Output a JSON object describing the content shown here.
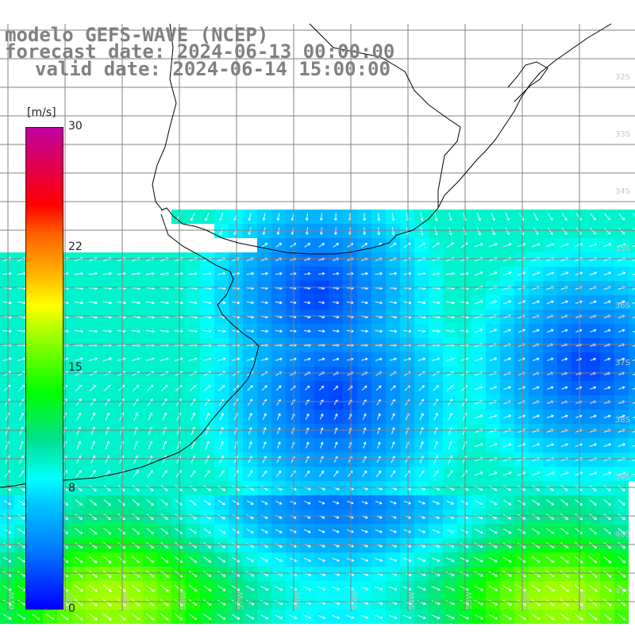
{
  "title": {
    "line1": "modelo GEFS-WAVE (NCEP)",
    "line2": "forecast date: 2024-06-13 00:00:00",
    "line3": "valid date: 2024-06-14 15:00:00"
  },
  "colorbar": {
    "unit": "[m/s]",
    "ticks": [
      "30",
      "22",
      "15",
      "8",
      "0"
    ],
    "tick_values": [
      30,
      22,
      15,
      8,
      0
    ],
    "range": [
      0,
      30
    ],
    "colors": [
      "#0000ff",
      "#00c8ff",
      "#00ffff",
      "#00ff00",
      "#ffff00",
      "#ff6000",
      "#ff0000",
      "#c000a0"
    ]
  },
  "map": {
    "variable": "wind speed and direction",
    "lat_labels": [
      "32S",
      "33S",
      "34S",
      "35S",
      "36S",
      "37S",
      "38S",
      "39S",
      "40S",
      "41S"
    ],
    "lon_labels": [
      "61W",
      "60W",
      "59W",
      "58W",
      "57W",
      "56W",
      "55W",
      "54W",
      "53W",
      "52W",
      "51W"
    ],
    "lon_range": [
      -62,
      -51
    ],
    "lat_range": [
      -41.3,
      -30.4
    ],
    "colors": {
      "land": "#ffffff",
      "coastline": "#000000",
      "grid": "#808080",
      "arrows": "#ffffff"
    }
  }
}
